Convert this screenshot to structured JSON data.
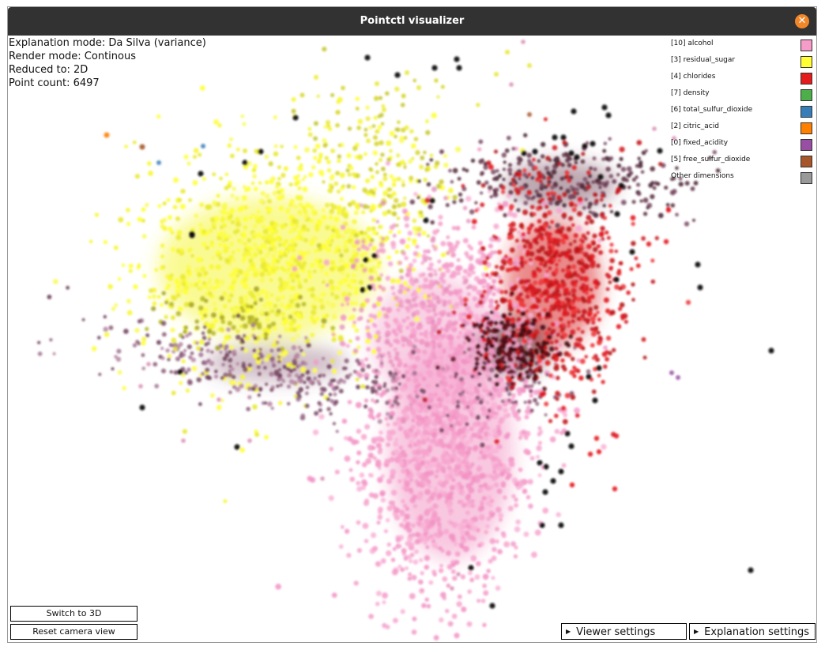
{
  "window": {
    "title": "Pointctl visualizer"
  },
  "info": {
    "explanation_mode": "Explanation mode: Da Silva (variance)",
    "render_mode": "Render mode: Continous",
    "reduced_to": "Reduced to: 2D",
    "point_count": "Point count: 6497"
  },
  "legend": [
    {
      "label": "[10] alcohol",
      "color": "#f59cc9"
    },
    {
      "label": "[3] residual_sugar",
      "color": "#ffff33"
    },
    {
      "label": "[4] chlorides",
      "color": "#e41a1c"
    },
    {
      "label": "[7] density",
      "color": "#4daf4a"
    },
    {
      "label": "[6] total_sulfur_dioxide",
      "color": "#377eb8"
    },
    {
      "label": "[2] citric_acid",
      "color": "#ff7f00"
    },
    {
      "label": "[0] fixed_acidity",
      "color": "#984ea3"
    },
    {
      "label": "[5] free_sulfur_dioxide",
      "color": "#a65628"
    },
    {
      "label": "Other dimensions",
      "color": "#999999"
    }
  ],
  "buttons": {
    "switch_3d": "Switch to 3D",
    "reset_camera": "Reset camera view"
  },
  "toggles": {
    "viewer_settings": "Viewer settings",
    "explanation_settings": "Explanation settings"
  }
}
